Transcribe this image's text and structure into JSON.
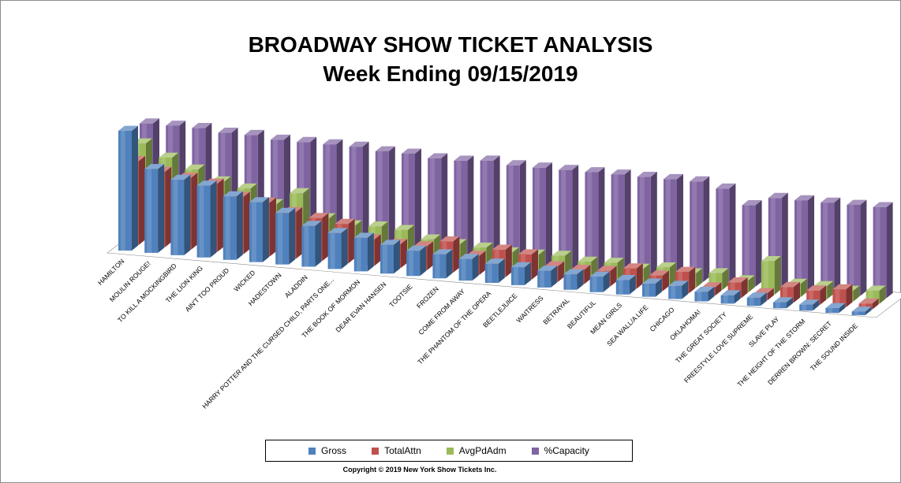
{
  "chart_data": {
    "type": "bar",
    "title": "BROADWAY SHOW TICKET ANALYSIS",
    "subtitle": "Week Ending 09/15/2019",
    "categories": [
      "HAMILTON",
      "MOULIN ROUGE!",
      "TO KILL A MOCKINGBIRD",
      "THE LION KING",
      "AIN'T TOO PROUD",
      "WICKED",
      "HADESTOWN",
      "ALADDIN",
      "HARRY POTTER AND THE CURSED CHILD, PARTS ONE...",
      "THE BOOK OF MORMON",
      "DEAR EVAN HANSEN",
      "TOOTSIE",
      "FROZEN",
      "COME FROM AWAY",
      "THE PHANTOM OF THE OPERA",
      "BEETLEJUICE",
      "WAITRESS",
      "BETRAYAL",
      "BEAUTIFUL",
      "MEAN GIRLS",
      "SEA WALL/A LIFE",
      "CHICAGO",
      "OKLAHOMA!",
      "THE GREAT SOCIETY",
      "FREESTYLE LOVE SUPREME",
      "SLAVE PLAY",
      "THE HEIGHT OF THE STORM",
      "DERREN BROWN: SECRET",
      "THE SOUND INSIDE"
    ],
    "series": [
      {
        "name": "Gross",
        "color": "#4f81bd",
        "values": [
          100,
          70,
          63,
          60,
          53,
          50,
          43,
          34,
          30,
          28,
          24,
          21,
          20,
          18,
          16,
          15,
          14,
          13,
          13,
          12,
          11,
          11,
          8,
          7,
          7,
          5,
          5,
          4,
          3
        ]
      },
      {
        "name": "TotalAttn",
        "color": "#c0504d",
        "values": [
          70,
          63,
          60,
          57,
          48,
          45,
          39,
          36,
          33,
          22,
          20,
          20,
          26,
          16,
          23,
          21,
          13,
          12,
          13,
          17,
          13,
          18,
          7,
          13,
          6,
          13,
          12,
          15,
          5
        ]
      },
      {
        "name": "AvgPdAdm",
        "color": "#9bbb59",
        "values": [
          80,
          70,
          62,
          54,
          50,
          39,
          50,
          31,
          27,
          28,
          27,
          21,
          19,
          18,
          16,
          16,
          17,
          14,
          15,
          12,
          15,
          12,
          14,
          10,
          28,
          11,
          11,
          9,
          11
        ]
      },
      {
        "name": "%Capacity",
        "color": "#8064a2",
        "values": [
          92,
          92,
          92,
          90,
          90,
          88,
          88,
          88,
          88,
          86,
          86,
          84,
          84,
          86,
          84,
          84,
          84,
          84,
          84,
          84,
          84,
          84,
          80,
          68,
          76,
          76,
          76,
          76,
          76
        ]
      }
    ],
    "legend_position": "bottom",
    "grid": false
  },
  "legend": [
    {
      "label": "Gross",
      "color": "#4f81bd"
    },
    {
      "label": "TotalAttn",
      "color": "#c0504d"
    },
    {
      "label": "AvgPdAdm",
      "color": "#9bbb59"
    },
    {
      "label": "%Capacity",
      "color": "#8064a2"
    }
  ],
  "copyright": "Copyright © 2019 New York Show Tickets Inc."
}
